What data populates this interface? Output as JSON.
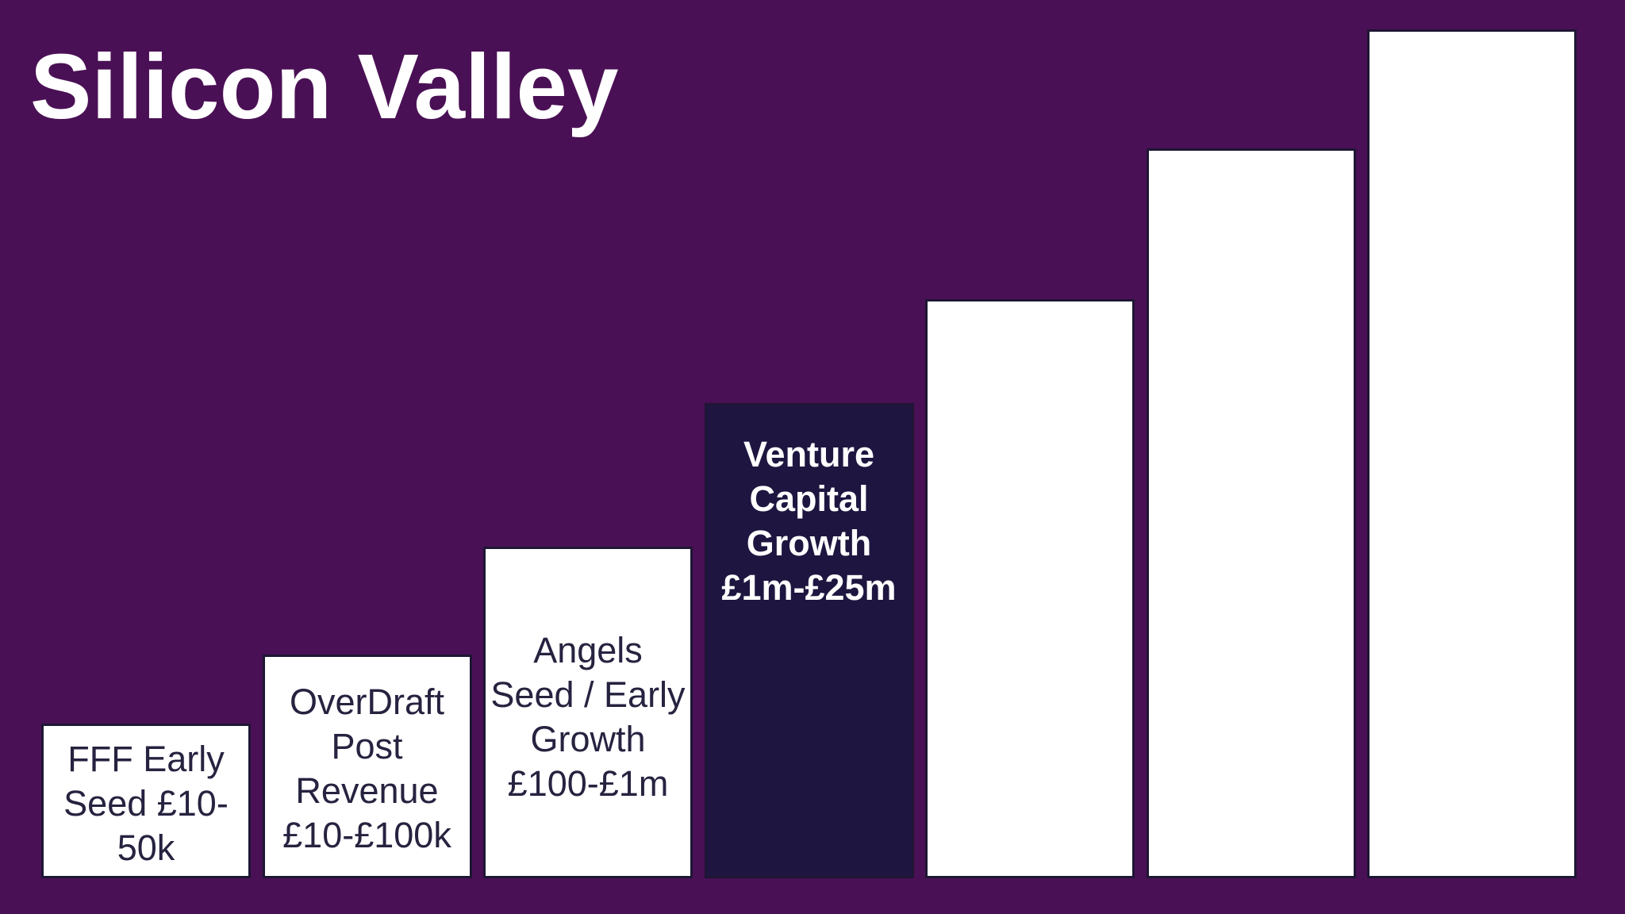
{
  "title": "Silicon Valley",
  "colors": {
    "background": "#4a1055",
    "bar_default": "#ffffff",
    "bar_highlight": "#1e1640",
    "text_on_light": "#262340",
    "text_on_dark": "#ffffff"
  },
  "chart_data": {
    "type": "bar",
    "title": "Silicon Valley",
    "xlabel": "",
    "ylabel": "",
    "grid": false,
    "legend": "none",
    "bars": [
      {
        "label": "FFF Early\nSeed £10-\n50k",
        "value": 1,
        "highlight": false
      },
      {
        "label": "OverDraft\nPost\nRevenue\n£10-£100k",
        "value": 2,
        "highlight": false
      },
      {
        "label": "Angels\nSeed / Early\nGrowth\n£100-£1m",
        "value": 3,
        "highlight": false
      },
      {
        "label": "Venture\nCapital\nGrowth\n£1m-£25m",
        "value": 4,
        "highlight": true
      },
      {
        "label": "",
        "value": 5,
        "highlight": false
      },
      {
        "label": "",
        "value": 6,
        "highlight": false
      },
      {
        "label": "",
        "value": 7,
        "highlight": false
      }
    ]
  }
}
